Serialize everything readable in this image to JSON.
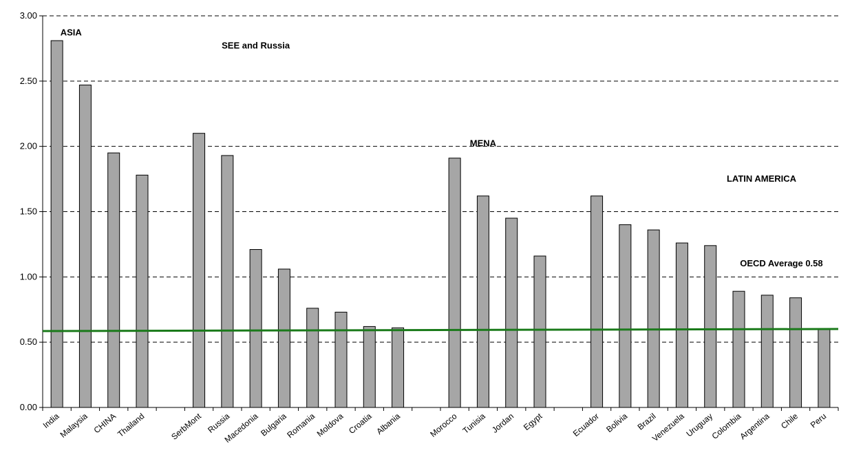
{
  "chart_data": {
    "type": "bar",
    "categories": [
      "India",
      "Malaysia",
      "CHINA",
      "Thailand",
      "",
      "SerbMont",
      "Russia",
      "Macedonia",
      "Bulgaria",
      "Romania",
      "Moldova",
      "Croatia",
      "Albania",
      "",
      "Morocco",
      "Tunisia",
      "Jordan",
      "Egypt",
      "",
      "Ecuador",
      "Bolivia",
      "Brazil",
      "Venezuela",
      "Uruguay",
      "Colombia",
      "Argentina",
      "Chile",
      "Peru"
    ],
    "values": [
      2.81,
      2.47,
      1.95,
      1.78,
      null,
      2.1,
      1.93,
      1.21,
      1.06,
      0.76,
      0.73,
      0.62,
      0.61,
      null,
      1.91,
      1.62,
      1.45,
      1.16,
      null,
      1.62,
      1.4,
      1.36,
      1.26,
      1.24,
      0.89,
      0.86,
      0.84,
      0.6
    ],
    "ylim": [
      0,
      3.0
    ],
    "yticks": [
      "0.00",
      "0.50",
      "1.00",
      "1.50",
      "2.00",
      "2.50",
      "3.00"
    ],
    "grid": "horizontal-dashed",
    "bar_color": "#a6a6a6",
    "reference_line": {
      "value": 0.58,
      "color": "#1a7a1a"
    },
    "group_labels": [
      {
        "text": "ASIA",
        "at_category": 1,
        "y": 2.85
      },
      {
        "text": "SEE and Russia",
        "at_category": 7.5,
        "y": 2.75
      },
      {
        "text": "MENA",
        "at_category": 15.5,
        "y": 2.0
      },
      {
        "text": "LATIN AMERICA",
        "at_category": 25.3,
        "y": 1.73
      },
      {
        "text": "OECD Average 0.58",
        "at_category": 26,
        "y": 1.08
      }
    ]
  }
}
